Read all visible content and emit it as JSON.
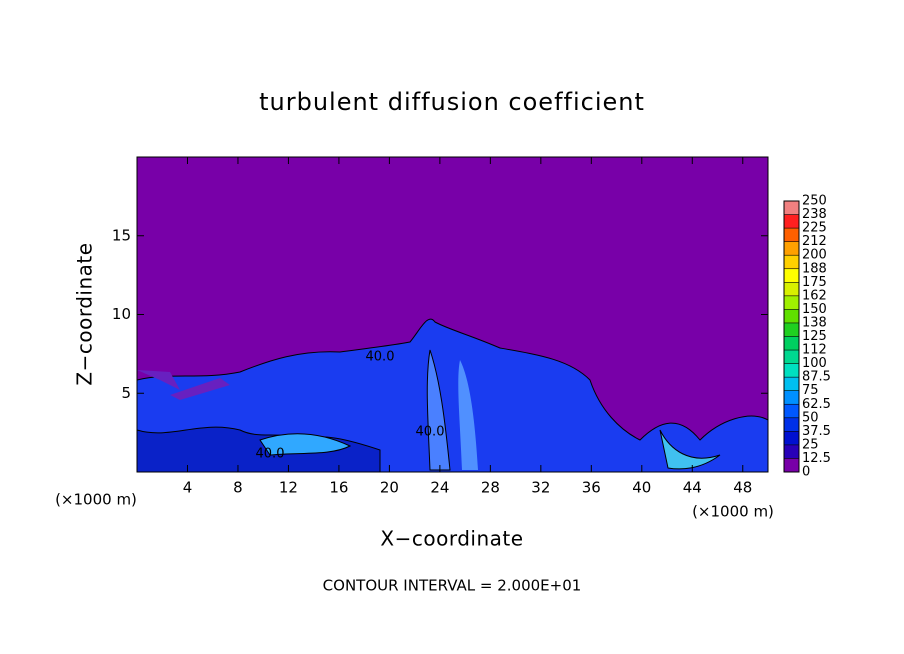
{
  "chart_data": {
    "type": "contour",
    "title": "turbulent diffusion coefficient",
    "xlabel": "X−coordinate",
    "ylabel": "Z−coordinate",
    "x_unit": "(×1000 m)",
    "annotation": "CONTOUR INTERVAL = 2.000E+01",
    "contour_label": "40.0",
    "xlim": [
      0,
      50
    ],
    "xticks": [
      4,
      8,
      12,
      16,
      20,
      24,
      28,
      32,
      36,
      40,
      44,
      48
    ],
    "ylim": [
      0,
      20
    ],
    "yticks": [
      5,
      10,
      15
    ],
    "colorbar": {
      "levels": [
        0,
        12.5,
        25,
        37.5,
        50,
        62.5,
        75,
        87.5,
        100,
        {
          "value": 112.5,
          "label": "112"
        },
        125,
        {
          "value": 137.5,
          "label": "138"
        },
        150,
        {
          "value": 162.5,
          "label": "162"
        },
        175,
        {
          "value": 187.5,
          "label": "188"
        },
        200,
        {
          "value": 212.5,
          "label": "212"
        },
        225,
        {
          "value": 237.5,
          "label": "238"
        },
        250
      ],
      "colors": [
        "#7800a8",
        "#2800b8",
        "#0010d0",
        "#0030e8",
        "#0058ff",
        "#0090ff",
        "#00c0f0",
        "#00e0c0",
        "#00d890",
        "#00d060",
        "#20d020",
        "#60e000",
        "#a0f000",
        "#d8f000",
        "#ffff00",
        "#ffd000",
        "#ffa000",
        "#ff6000",
        "#ff2020",
        "#f08080"
      ]
    }
  }
}
